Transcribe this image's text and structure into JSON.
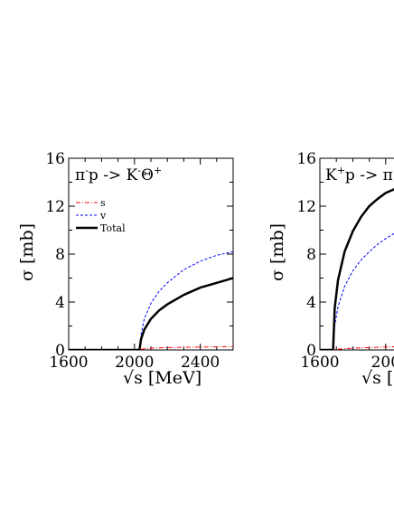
{
  "chart_data": [
    {
      "type": "line",
      "title_parts": [
        "π",
        "-",
        "p -> K",
        "-",
        "Θ",
        "+"
      ],
      "xlabel": "√s [MeV]",
      "ylabel": "σ [mb]",
      "xlim": [
        1600,
        2600
      ],
      "ylim": [
        0,
        16
      ],
      "x_ticks": [
        "1600",
        "2000",
        "2400"
      ],
      "y_ticks": [
        "0",
        "4",
        "8",
        "12",
        "16"
      ],
      "legend": {
        "placement": "top-left",
        "entries": [
          "s",
          "v",
          "Total"
        ]
      },
      "series": [
        {
          "name": "s",
          "color": "#ff0000",
          "style": "dash-dot",
          "x": [
            1600,
            2030,
            2040,
            2060,
            2100,
            2200,
            2300,
            2400,
            2500,
            2600
          ],
          "y": [
            0,
            0,
            0.05,
            0.1,
            0.15,
            0.2,
            0.22,
            0.24,
            0.26,
            0.28
          ]
        },
        {
          "name": "v",
          "color": "#0000ff",
          "style": "dashed",
          "x": [
            1600,
            2030,
            2040,
            2060,
            2100,
            2150,
            2200,
            2300,
            2400,
            2500,
            2600
          ],
          "y": [
            0,
            0,
            1.3,
            2.6,
            3.9,
            4.9,
            5.6,
            6.7,
            7.4,
            7.9,
            8.2
          ]
        },
        {
          "name": "Total",
          "color": "#000000",
          "style": "solid",
          "x": [
            1600,
            2030,
            2040,
            2060,
            2100,
            2150,
            2200,
            2300,
            2400,
            2500,
            2600
          ],
          "y": [
            0,
            0,
            0.9,
            1.7,
            2.6,
            3.3,
            3.8,
            4.6,
            5.2,
            5.6,
            6.0
          ]
        }
      ]
    },
    {
      "type": "line",
      "title_parts": [
        "K",
        "+",
        "p -> π"
      ],
      "xlabel": "√s [M",
      "ylabel": "σ [mb]",
      "xlim": [
        1600,
        2600
      ],
      "ylim": [
        0,
        16
      ],
      "x_ticks": [
        "1600",
        "200"
      ],
      "y_ticks": [
        "0",
        "4",
        "8",
        "12",
        "16"
      ],
      "series": [
        {
          "name": "s",
          "color": "#ff0000",
          "style": "dash-dot",
          "x": [
            1600,
            1680,
            1700,
            1800,
            1900,
            2000,
            2100
          ],
          "y": [
            0,
            0,
            0.05,
            0.15,
            0.2,
            0.25,
            0.28
          ]
        },
        {
          "name": "v",
          "color": "#0000ff",
          "style": "dashed",
          "x": [
            1600,
            1680,
            1690,
            1710,
            1750,
            1800,
            1850,
            1900,
            1950,
            2000,
            2050,
            2100
          ],
          "y": [
            0,
            0,
            2.0,
            3.6,
            5.3,
            6.6,
            7.5,
            8.2,
            8.8,
            9.3,
            9.7,
            10.0
          ]
        },
        {
          "name": "Total",
          "color": "#000000",
          "style": "solid",
          "x": [
            1600,
            1680,
            1690,
            1710,
            1750,
            1800,
            1850,
            1900,
            1950,
            2000,
            2050,
            2100
          ],
          "y": [
            0,
            0,
            3.5,
            5.8,
            8.2,
            9.9,
            11.1,
            12.0,
            12.6,
            13.1,
            13.4,
            13.6
          ]
        }
      ]
    }
  ]
}
